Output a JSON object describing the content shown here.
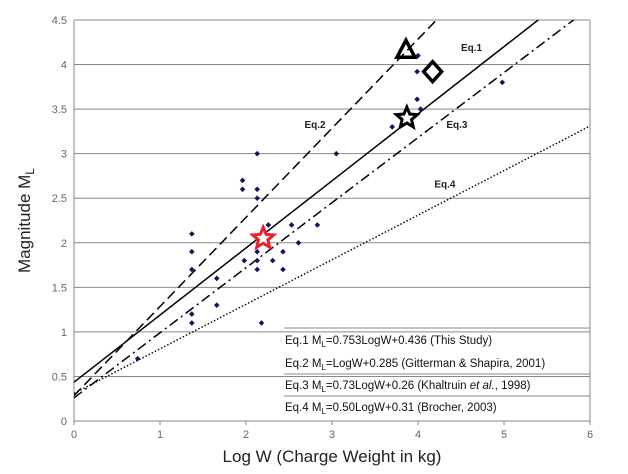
{
  "chart_data": {
    "type": "scatter",
    "title": "",
    "xlabel": "Log W (Charge Weight in kg)",
    "ylabel": {
      "main": "Magnitude M",
      "sub": "L"
    },
    "xlim": [
      0,
      6
    ],
    "ylim": [
      0,
      4.5
    ],
    "xticks": [
      "0",
      "1",
      "2",
      "3",
      "4",
      "5",
      "6"
    ],
    "yticks": [
      "0",
      "0.5",
      "1",
      "1.5",
      "2",
      "2.5",
      "3",
      "3.5",
      "4",
      "4.5"
    ],
    "grid": "horizontal",
    "points": [
      [
        2.13,
        3.0
      ],
      [
        3.05,
        3.0
      ],
      [
        1.96,
        2.7
      ],
      [
        1.96,
        2.6
      ],
      [
        2.13,
        2.6
      ],
      [
        2.13,
        2.5
      ],
      [
        2.26,
        2.2
      ],
      [
        2.53,
        2.2
      ],
      [
        2.83,
        2.2
      ],
      [
        1.37,
        2.1
      ],
      [
        2.61,
        2.0
      ],
      [
        1.37,
        1.9
      ],
      [
        2.13,
        1.9
      ],
      [
        2.43,
        1.9
      ],
      [
        1.98,
        1.8
      ],
      [
        2.13,
        1.8
      ],
      [
        2.31,
        1.8
      ],
      [
        1.37,
        1.7
      ],
      [
        2.13,
        1.7
      ],
      [
        2.43,
        1.7
      ],
      [
        1.66,
        1.6
      ],
      [
        1.66,
        1.3
      ],
      [
        1.37,
        1.2
      ],
      [
        1.37,
        1.1
      ],
      [
        2.18,
        1.1
      ],
      [
        0.74,
        0.7
      ],
      [
        4.0,
        4.1
      ],
      [
        3.99,
        3.92
      ],
      [
        4.98,
        3.8
      ],
      [
        3.99,
        3.61
      ],
      [
        4.03,
        3.5
      ],
      [
        3.7,
        3.3
      ]
    ],
    "special_markers": [
      {
        "shape": "triangle",
        "x": 3.86,
        "y": 4.16,
        "color": "#000000"
      },
      {
        "shape": "diamond",
        "x": 4.17,
        "y": 3.92,
        "color": "#000000"
      },
      {
        "shape": "star",
        "x": 3.87,
        "y": 3.4,
        "color": "#000000"
      },
      {
        "shape": "star",
        "x": 2.2,
        "y": 2.05,
        "color": "#e8212a"
      }
    ],
    "series": [
      {
        "name": "Eq.1",
        "slope": 0.753,
        "intercept": 0.436,
        "style": "solid",
        "label_at": [
          4.5,
          4.15
        ]
      },
      {
        "name": "Eq.2",
        "slope": 1.0,
        "intercept": 0.285,
        "style": "dashed",
        "label_at": [
          2.68,
          3.29
        ]
      },
      {
        "name": "Eq.3",
        "slope": 0.73,
        "intercept": 0.26,
        "style": "dashdot",
        "label_at": [
          4.33,
          3.29
        ]
      },
      {
        "name": "Eq.4",
        "slope": 0.5,
        "intercept": 0.31,
        "style": "dotted",
        "label_at": [
          4.19,
          2.62
        ]
      }
    ],
    "legend": [
      [
        {
          "t": "Eq.1 M"
        },
        {
          "t": "L",
          "sub": true
        },
        {
          "t": "=0.753LogW+0.436 (This Study)"
        }
      ],
      [
        {
          "t": "Eq.2 M"
        },
        {
          "t": "L",
          "sub": true
        },
        {
          "t": "=LogW+0.285 (Gitterman & Shapira, 2001)"
        }
      ],
      [
        {
          "t": "Eq.3 M"
        },
        {
          "t": "L",
          "sub": true
        },
        {
          "t": "=0.73LogW+0.26 (Khaltruin "
        },
        {
          "t": "et al.",
          "it": true
        },
        {
          "t": ", 1998)"
        }
      ],
      [
        {
          "t": "Eq.4 M"
        },
        {
          "t": "L",
          "sub": true
        },
        {
          "t": "=0.50LogW+0.31 (Brocher, 2003)"
        }
      ]
    ],
    "legend_placement": "bottom-right",
    "point_color": "#14145a"
  }
}
